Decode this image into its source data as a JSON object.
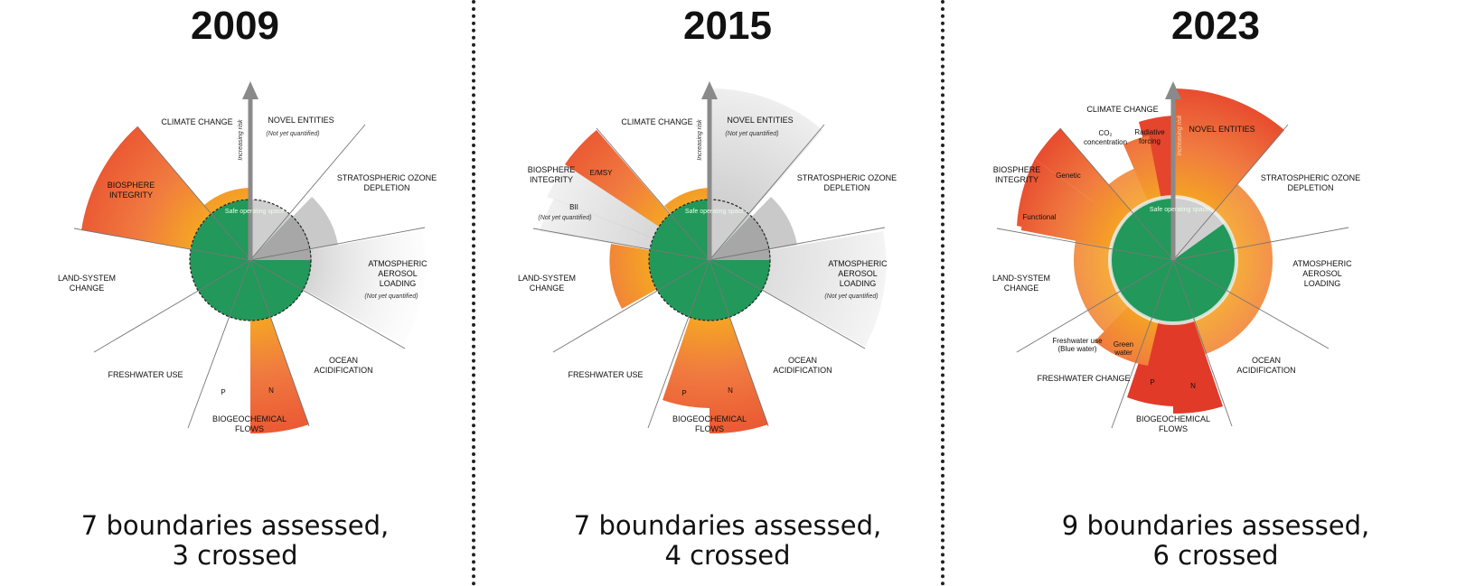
{
  "panels": [
    {
      "year": "2009",
      "caption_line1": "7 boundaries assessed,",
      "caption_line2": "3 crossed",
      "labels": {
        "climate": "CLIMATE CHANGE",
        "novel": "NOVEL ENTITIES",
        "novel_sub": "(Not yet quantified)",
        "ozone1": "STRATOSPHERIC OZONE",
        "ozone2": "DEPLETION",
        "aerosol1": "ATMOSPHERIC",
        "aerosol2": "AEROSOL",
        "aerosol3": "LOADING",
        "aerosol_sub": "(Not yet quantified)",
        "ocean1": "OCEAN",
        "ocean2": "ACIDIFICATION",
        "bio1": "BIOGEOCHEMICAL",
        "bio2": "FLOWS",
        "p": "P",
        "n": "N",
        "fresh": "FRESHWATER USE",
        "land1": "LAND-SYSTEM",
        "land2": "CHANGE",
        "integ1": "BIOSPHERE",
        "integ2": "INTEGRITY",
        "risk": "Increasing risk",
        "safe": "Safe operating space"
      }
    },
    {
      "year": "2015",
      "caption_line1": "7 boundaries assessed,",
      "caption_line2": "4 crossed",
      "labels": {
        "climate": "CLIMATE CHANGE",
        "novel": "NOVEL ENTITIES",
        "novel_sub": "(Not yet quantified)",
        "ozone1": "STRATOSPHERIC OZONE",
        "ozone2": "DEPLETION",
        "aerosol1": "ATMOSPHERIC",
        "aerosol2": "AEROSOL",
        "aerosol3": "LOADING",
        "aerosol_sub": "(Not yet quantified)",
        "ocean1": "OCEAN",
        "ocean2": "ACIDIFICATION",
        "bio1": "BIOGEOCHEMICAL",
        "bio2": "FLOWS",
        "p": "P",
        "n": "N",
        "fresh": "FRESHWATER USE",
        "land1": "LAND-SYSTEM",
        "land2": "CHANGE",
        "integ1": "BIOSPHERE",
        "integ2": "INTEGRITY",
        "emsy": "E/MSY",
        "bii": "BII",
        "bii_sub": "(Not yet quantified)",
        "risk": "Increasing risk",
        "safe": "Safe operating space"
      }
    },
    {
      "year": "2023",
      "caption_line1": "9 boundaries assessed,",
      "caption_line2": "6 crossed",
      "labels": {
        "climate": "CLIMATE CHANGE",
        "co2_1": "CO₂",
        "co2_2": "concentration",
        "rad1": "Radiative",
        "rad2": "forcing",
        "novel": "NOVEL ENTITIES",
        "ozone1": "STRATOSPHERIC OZONE",
        "ozone2": "DEPLETION",
        "aerosol1": "ATMOSPHERIC",
        "aerosol2": "AEROSOL",
        "aerosol3": "LOADING",
        "ocean1": "OCEAN",
        "ocean2": "ACIDIFICATION",
        "bio1": "BIOGEOCHEMICAL",
        "bio2": "FLOWS",
        "p": "P",
        "n": "N",
        "fresh": "FRESHWATER CHANGE",
        "blue1": "Freshwater use",
        "blue2": "(Blue water)",
        "green1": "Green",
        "green2": "water",
        "land1": "LAND-SYSTEM",
        "land2": "CHANGE",
        "integ1": "BIOSPHERE",
        "integ2": "INTEGRITY",
        "genetic": "Genetic",
        "functional": "Functional",
        "risk": "Increasing risk",
        "safe": "Safe operating space"
      }
    }
  ]
}
